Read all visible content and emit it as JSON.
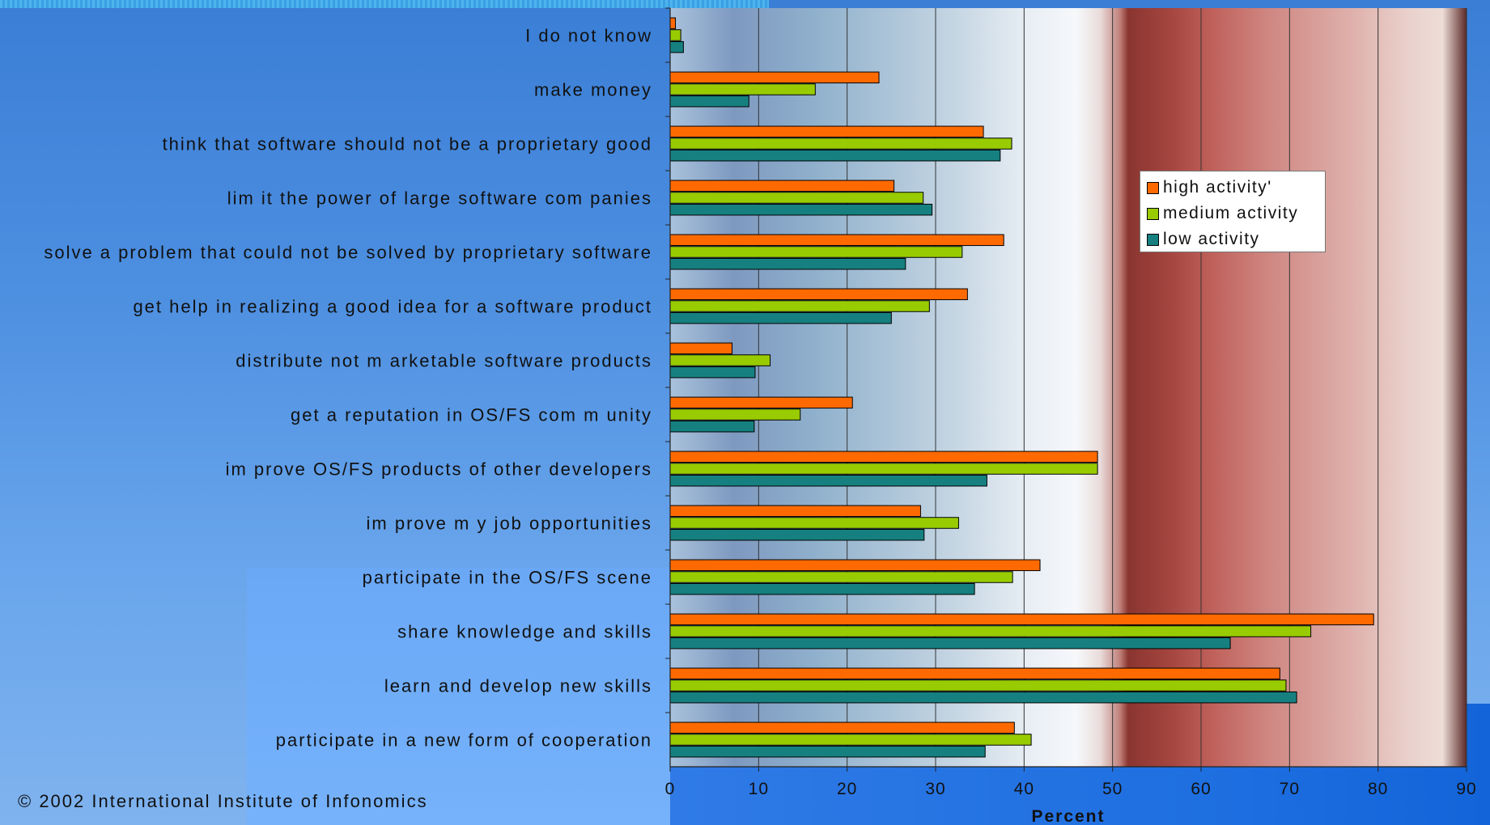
{
  "colors": {
    "high": "#ff6a00",
    "medium": "#99cc00",
    "low": "#168080"
  },
  "copyright": "© 2002 International Institute of Infonomics",
  "legend": {
    "high": "high activity'",
    "medium": "medium activity",
    "low": "low activity"
  },
  "chart_data": {
    "type": "bar",
    "orientation": "horizontal",
    "xlabel": "Percent",
    "xlim": [
      0,
      90
    ],
    "xticks": [
      0,
      10,
      20,
      30,
      40,
      50,
      60,
      70,
      80,
      90
    ],
    "grid": "vertical",
    "legend_position": "right",
    "categories": [
      "I do not know",
      "make money",
      "think that software should not be a proprietary good",
      "lim it the power of large software com panies",
      "solve a problem that could not be solved by proprietary software",
      "get help in realizing a good idea for a software product",
      "distribute not m arketable software products",
      "get a reputation in OS/FS com m unity",
      "im prove OS/FS products of other developers",
      "im prove m y job opportunities",
      "participate in the OS/FS scene",
      "share knowledge and skills",
      "learn and develop new skills",
      "participate in a new form of cooperation"
    ],
    "series": [
      {
        "name": "high activity'",
        "values": [
          0.6,
          23.6,
          35.4,
          25.3,
          37.7,
          33.6,
          7.0,
          20.6,
          48.3,
          28.3,
          41.8,
          79.5,
          68.9,
          38.9
        ]
      },
      {
        "name": "medium activity",
        "values": [
          1.2,
          16.4,
          38.6,
          28.6,
          33.0,
          29.3,
          11.3,
          14.7,
          48.3,
          32.6,
          38.7,
          72.4,
          69.6,
          40.8
        ]
      },
      {
        "name": "low activity",
        "values": [
          1.5,
          8.9,
          37.3,
          29.6,
          26.6,
          25.0,
          9.6,
          9.5,
          35.8,
          28.7,
          34.4,
          63.3,
          70.8,
          35.6
        ]
      }
    ]
  }
}
